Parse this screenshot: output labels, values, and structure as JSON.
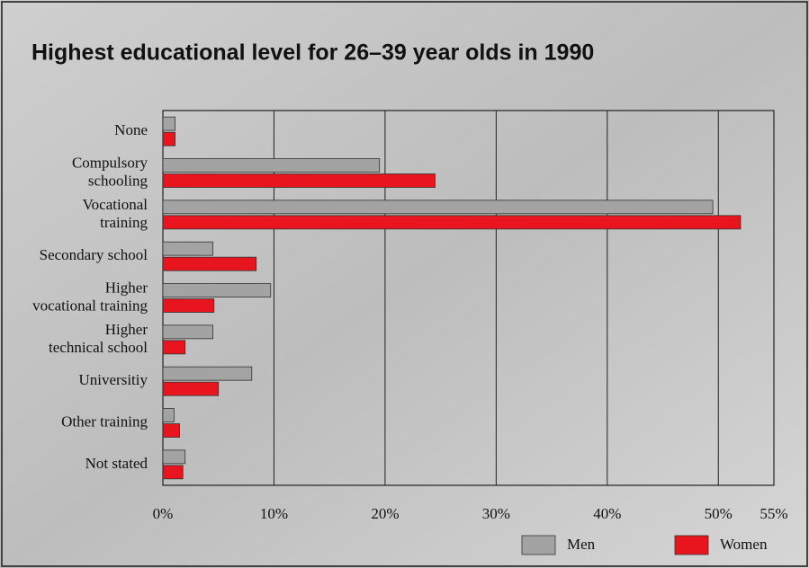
{
  "chart_data": {
    "type": "bar",
    "orientation": "horizontal",
    "title": "Highest educational level for 26–39 year olds in 1990",
    "categories": [
      "None",
      "Compulsory\nschooling",
      "Vocational\ntraining",
      "Secondary school",
      "Higher\nvocational training",
      "Higher\ntechnical school",
      "Universitiy",
      "Other training",
      "Not stated"
    ],
    "series": [
      {
        "name": "Men",
        "color": "#a3a3a3",
        "values": [
          1.1,
          19.5,
          49.5,
          4.5,
          9.7,
          4.5,
          8.0,
          1.0,
          2.0
        ]
      },
      {
        "name": "Women",
        "color": "#e8141e",
        "values": [
          1.1,
          24.5,
          52.0,
          8.4,
          4.6,
          2.0,
          5.0,
          1.5,
          1.8
        ]
      }
    ],
    "xlim": [
      0,
      55
    ],
    "xticks": [
      {
        "value": 0,
        "label": "0%"
      },
      {
        "value": 10,
        "label": "10%"
      },
      {
        "value": 20,
        "label": "20%"
      },
      {
        "value": 30,
        "label": "30%"
      },
      {
        "value": 40,
        "label": "40%"
      },
      {
        "value": 50,
        "label": "50%"
      },
      {
        "value": 55,
        "label": "55%"
      }
    ],
    "grid": true,
    "legend": "bottom-right"
  }
}
